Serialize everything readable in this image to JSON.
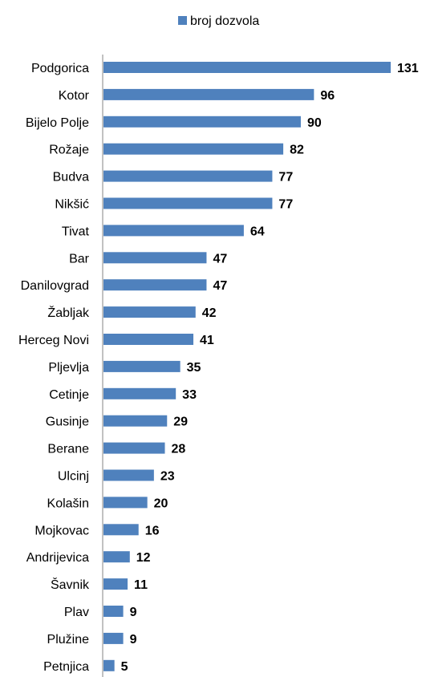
{
  "chart_data": {
    "type": "bar",
    "orientation": "horizontal",
    "legend": {
      "position": "top",
      "label": "broj dozvola"
    },
    "categories": [
      "Podgorica",
      "Kotor",
      "Bijelo Polje",
      "Rožaje",
      "Budva",
      "Nikšić",
      "Tivat",
      "Bar",
      "Danilovgrad",
      "Žabljak",
      "Herceg Novi",
      "Pljevlja",
      "Cetinje",
      "Gusinje",
      "Berane",
      "Ulcinj",
      "Kolašin",
      "Mojkovac",
      "Andrijevica",
      "Šavnik",
      "Plav",
      "Plužine",
      "Petnjica"
    ],
    "series": [
      {
        "name": "broj dozvola",
        "values": [
          131,
          96,
          90,
          82,
          77,
          77,
          64,
          47,
          47,
          42,
          41,
          35,
          33,
          29,
          28,
          23,
          20,
          16,
          12,
          11,
          9,
          9,
          5
        ]
      }
    ],
    "xlim": [
      0,
      131
    ],
    "grid": false,
    "data_labels": true,
    "colors": {
      "bar": "#4f81bd",
      "axis": "#868686",
      "text": "#000000"
    }
  }
}
